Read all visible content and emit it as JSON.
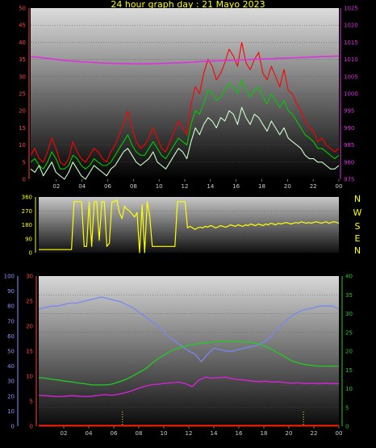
{
  "title": "24 hour graph day : 21 Mayo 2023",
  "chart_data": [
    {
      "type": "line",
      "name": "wind-pressure",
      "x_tick_labels": [
        "02",
        "04",
        "06",
        "08",
        "10",
        "12",
        "14",
        "16",
        "18",
        "20",
        "22",
        "00"
      ],
      "y_left_ticks": [
        0,
        5,
        10,
        15,
        20,
        25,
        30,
        35,
        40,
        45,
        50
      ],
      "y_right_ticks": [
        975,
        980,
        985,
        990,
        995,
        1000,
        1005,
        1010,
        1015,
        1020,
        1025
      ],
      "ylim_left": [
        0,
        50
      ],
      "ylim_right": [
        975,
        1025
      ],
      "series": [
        {
          "key": "gust",
          "color": "#ff0000",
          "values": [
            7,
            9,
            6,
            5,
            8,
            12,
            9,
            5,
            4,
            6,
            11,
            8,
            6,
            5,
            7,
            9,
            8,
            6,
            5,
            8,
            10,
            13,
            16,
            20,
            15,
            11,
            9,
            10,
            12,
            15,
            12,
            9,
            8,
            11,
            14,
            17,
            15,
            13,
            22,
            27,
            25,
            31,
            35,
            33,
            29,
            31,
            34,
            38,
            36,
            33,
            40,
            34,
            32,
            35,
            37,
            31,
            29,
            33,
            30,
            27,
            32,
            26,
            25,
            22,
            20,
            17,
            15,
            14,
            11,
            12,
            10,
            9,
            8,
            9
          ]
        },
        {
          "key": "average",
          "color": "#00cc00",
          "values": [
            5,
            6,
            4,
            3,
            5,
            8,
            6,
            3,
            3,
            4,
            7,
            6,
            4,
            3,
            4,
            6,
            5,
            4,
            4,
            5,
            7,
            9,
            11,
            13,
            10,
            8,
            7,
            7,
            9,
            11,
            9,
            7,
            6,
            8,
            10,
            12,
            11,
            10,
            16,
            20,
            19,
            22,
            26,
            25,
            23,
            24,
            26,
            28,
            27,
            25,
            29,
            26,
            24,
            26,
            27,
            24,
            22,
            25,
            23,
            21,
            23,
            20,
            19,
            17,
            15,
            13,
            12,
            11,
            9,
            9,
            8,
            7,
            6,
            7
          ]
        },
        {
          "key": "speed",
          "color": "#ccffcc",
          "values": [
            3,
            2,
            4,
            1,
            3,
            5,
            2,
            1,
            0,
            2,
            5,
            3,
            1,
            0,
            2,
            4,
            3,
            2,
            1,
            3,
            4,
            6,
            8,
            9,
            7,
            5,
            4,
            5,
            6,
            8,
            5,
            4,
            3,
            5,
            7,
            9,
            8,
            6,
            11,
            15,
            13,
            16,
            18,
            17,
            15,
            18,
            17,
            20,
            19,
            16,
            21,
            18,
            16,
            19,
            18,
            16,
            14,
            17,
            15,
            13,
            15,
            12,
            11,
            10,
            9,
            7,
            6,
            6,
            5,
            5,
            4,
            3,
            3,
            4
          ]
        },
        {
          "key": "pressure",
          "color": "#dd33dd",
          "axis": "right",
          "values": [
            1010.8,
            1010.6,
            1010.3,
            1010.0,
            1009.7,
            1009.5,
            1009.3,
            1009.2,
            1009.0,
            1008.9,
            1008.8,
            1008.8,
            1008.7,
            1008.7,
            1008.7,
            1008.8,
            1008.9,
            1009.0,
            1009.1,
            1009.2,
            1009.4,
            1009.5,
            1009.6,
            1009.7,
            1009.8,
            1009.9,
            1010.0,
            1010.1,
            1010.2,
            1010.3,
            1010.4,
            1010.5,
            1010.6,
            1010.7,
            1010.8,
            1010.9,
            1011.0
          ]
        }
      ]
    },
    {
      "type": "line",
      "name": "wind-direction",
      "x_tick_labels": [
        "02",
        "04",
        "06",
        "08",
        "10",
        "12",
        "14",
        "16",
        "18",
        "20",
        "22",
        "00"
      ],
      "y_left_ticks": [
        0,
        90,
        180,
        270,
        360
      ],
      "ylim_left": [
        0,
        360
      ],
      "compass_labels": [
        "N",
        "W",
        "S",
        "E",
        "N"
      ],
      "series": [
        {
          "key": "direction",
          "color": "#ffff00",
          "values": [
            20,
            20,
            20,
            20,
            20,
            20,
            20,
            20,
            20,
            20,
            20,
            20,
            20,
            20,
            330,
            330,
            330,
            330,
            40,
            40,
            330,
            40,
            330,
            330,
            80,
            330,
            330,
            40,
            60,
            330,
            330,
            340,
            260,
            220,
            300,
            280,
            270,
            250,
            230,
            260,
            0,
            310,
            0,
            330,
            240,
            40,
            40,
            40,
            40,
            40,
            40,
            40,
            40,
            40,
            40,
            330,
            330,
            330,
            330,
            160,
            170,
            160,
            150,
            160,
            165,
            160,
            170,
            165,
            175,
            170,
            160,
            165,
            175,
            170,
            165,
            170,
            180,
            175,
            170,
            180,
            175,
            170,
            180,
            175,
            185,
            180,
            175,
            185,
            180,
            175,
            185,
            180,
            190,
            185,
            180,
            190,
            185,
            190,
            195,
            190,
            185,
            190,
            195,
            190,
            200,
            195,
            190,
            195,
            190,
            195,
            200,
            195,
            190,
            195,
            200,
            190,
            195,
            200,
            195,
            190
          ]
        }
      ]
    },
    {
      "type": "line",
      "name": "temp-humidity",
      "x_tick_labels": [
        "02",
        "04",
        "06",
        "08",
        "10",
        "12",
        "14",
        "16",
        "18",
        "20",
        "22",
        "00"
      ],
      "y_far_left_ticks": [
        0,
        10,
        20,
        30,
        40,
        50,
        60,
        70,
        80,
        90,
        100
      ],
      "y_left_ticks": [
        0,
        5,
        10,
        15,
        20,
        25,
        30
      ],
      "y_right_ticks": [
        0,
        5,
        10,
        15,
        20,
        25,
        30,
        35,
        40
      ],
      "ylim_far_left": [
        0,
        100
      ],
      "ylim_left": [
        0,
        30
      ],
      "ylim_right": [
        0,
        40
      ],
      "series": [
        {
          "key": "humidity",
          "color": "#7788ee",
          "axis": "far-left",
          "values": [
            78,
            79,
            80,
            80,
            81,
            82,
            82,
            83,
            84,
            85,
            86,
            85,
            84,
            83,
            81,
            79,
            76,
            73,
            70,
            67,
            63,
            59,
            56,
            53,
            50,
            48,
            43,
            48,
            52,
            51,
            50,
            50,
            51,
            52,
            53,
            54,
            56,
            59,
            64,
            68,
            72,
            75,
            77,
            78,
            79,
            80,
            80,
            80,
            78
          ]
        },
        {
          "key": "temperature",
          "color": "#22cc22",
          "axis": "right",
          "values": [
            13.0,
            12.8,
            12.5,
            12.3,
            12.0,
            11.8,
            11.5,
            11.3,
            11.0,
            11.0,
            11.0,
            11.2,
            11.8,
            12.4,
            13.3,
            14.3,
            15.3,
            16.8,
            18.1,
            19.2,
            20.2,
            20.8,
            21.4,
            21.7,
            22.0,
            22.2,
            22.4,
            22.6,
            22.7,
            22.6,
            22.5,
            22.4,
            22.3,
            21.9,
            21.3,
            20.4,
            19.4,
            18.4,
            17.4,
            16.8,
            16.4,
            16.2,
            16.0,
            16.0,
            16.0,
            16.0
          ]
        },
        {
          "key": "dewpoint",
          "color": "#dd22dd",
          "axis": "left",
          "values": [
            6.2,
            6.1,
            6.0,
            5.9,
            6.0,
            6.1,
            6.0,
            5.9,
            6.0,
            6.2,
            6.3,
            6.2,
            6.4,
            6.7,
            7.1,
            7.6,
            8.0,
            8.3,
            8.4,
            8.6,
            8.7,
            8.8,
            8.5,
            7.9,
            9.2,
            9.8,
            9.6,
            9.7,
            9.8,
            9.5,
            9.3,
            9.2,
            9.0,
            8.9,
            9.0,
            8.8,
            8.9,
            8.7,
            8.6,
            8.7,
            8.5,
            8.6,
            8.5,
            8.6,
            8.5,
            8.5
          ]
        },
        {
          "key": "rain",
          "color": "#ff2200",
          "axis": "left",
          "values": [
            0.1,
            0.1,
            0.1,
            0.1,
            0.1,
            0.1,
            0.1,
            0.1,
            0.1,
            0.1,
            0.1,
            0.1,
            0.1,
            0.1,
            0.1,
            0.1,
            0.1,
            0.1,
            0.1,
            0.1,
            0.1,
            0.1,
            0.1
          ]
        }
      ]
    }
  ]
}
